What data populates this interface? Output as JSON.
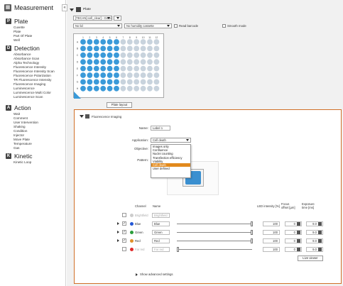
{
  "sidebar": {
    "title": "Measurement",
    "collapse_glyph": "«",
    "sections": [
      {
        "icon": "P",
        "name": "Plate",
        "items": [
          "Cuvette",
          "Plate",
          "Part Of Plate",
          "Well"
        ]
      },
      {
        "icon": "D",
        "name": "Detection",
        "items": [
          "Absorbance",
          "Absorbance Scan",
          "Alpha Technology",
          "Fluorescence Intensity",
          "Fluorescence Intensity Scan",
          "Fluorescence Polarization",
          "TR Fluorescence Intensity",
          "Fluorescence Imaging",
          "Luminescence",
          "Luminescence Multi Color",
          "Luminescence Scan"
        ]
      },
      {
        "icon": "A",
        "name": "Action",
        "items": [
          "Wait",
          "Comment",
          "User Intervention",
          "Shaking",
          "Condition",
          "Injector",
          "Move Plate",
          "Temperature",
          "Gas"
        ]
      },
      {
        "icon": "K",
        "name": "Kinetic",
        "items": [
          "Kinetic Loop"
        ]
      }
    ]
  },
  "plate_panel": {
    "title": "Plate",
    "plate_type": "[TECAN]-cell_clear] - Greein...",
    "lid": "No lid",
    "humidity": "No humidity cassette",
    "read_barcode": "Read barcode",
    "smooth_mode": "Smooth mode",
    "plate_layout_button": "Plate layout",
    "columns": [
      "1",
      "2",
      "3",
      "4",
      "5",
      "6",
      "7",
      "8",
      "9",
      "10",
      "11",
      "12"
    ],
    "rows": [
      "A",
      "B",
      "C",
      "D",
      "E",
      "F",
      "G",
      "H"
    ],
    "selected_columns": 6,
    "colors": {
      "selected_well": "#3a9ad9",
      "unselected_well": "#c8d3dd"
    }
  },
  "step": {
    "title": "Fluorescence Imaging",
    "name_label": "Name:",
    "name_value": "Label 1",
    "application_label": "Application:",
    "application_value": "Cell death",
    "objective_label": "Objective:",
    "pattern_label": "Pattern:",
    "application_options": [
      "Images only",
      "Confluence",
      "Nuclei counting",
      "Transfection efficiency",
      "Viability",
      "Cell death",
      "User defined"
    ],
    "selected_option_index": 5
  },
  "channels": {
    "headers": {
      "channel": "Channel",
      "name": "Name",
      "led": "LED intensity [%]",
      "focus": "Focus offset [µm]",
      "exposure": "Exposure time [ms]"
    },
    "rows": [
      {
        "channel": "Brightfield",
        "name": "Brightfield",
        "color": "#cccccc",
        "checked": "",
        "enabled": false,
        "expander": false,
        "slider": 0,
        "led": "",
        "focus": "",
        "exposure": ""
      },
      {
        "channel": "Blue",
        "name": "Blue",
        "color": "#2357d6",
        "checked": "✓",
        "enabled": true,
        "expander": true,
        "slider": 1.0,
        "led": "100",
        "focus": "0",
        "exposure": "9.0"
      },
      {
        "channel": "Green",
        "name": "Green",
        "color": "#2a9d3a",
        "checked": "✓",
        "enabled": true,
        "expander": true,
        "slider": 1.0,
        "led": "100",
        "focus": "0",
        "exposure": "9.0"
      },
      {
        "channel": "Red",
        "name": "Red",
        "color": "#e0902a",
        "checked": "✓",
        "enabled": true,
        "expander": true,
        "slider": 1.0,
        "led": "100",
        "focus": "0",
        "exposure": "9.0"
      },
      {
        "channel": "Far red",
        "name": "Far red",
        "color": "#e02a2a",
        "checked": "",
        "enabled": false,
        "expander": false,
        "slider": 0.0,
        "led": "100",
        "focus": "0",
        "exposure": "9.0"
      }
    ],
    "view_button": "Live viewer",
    "advanced": "Show advanced settings"
  }
}
